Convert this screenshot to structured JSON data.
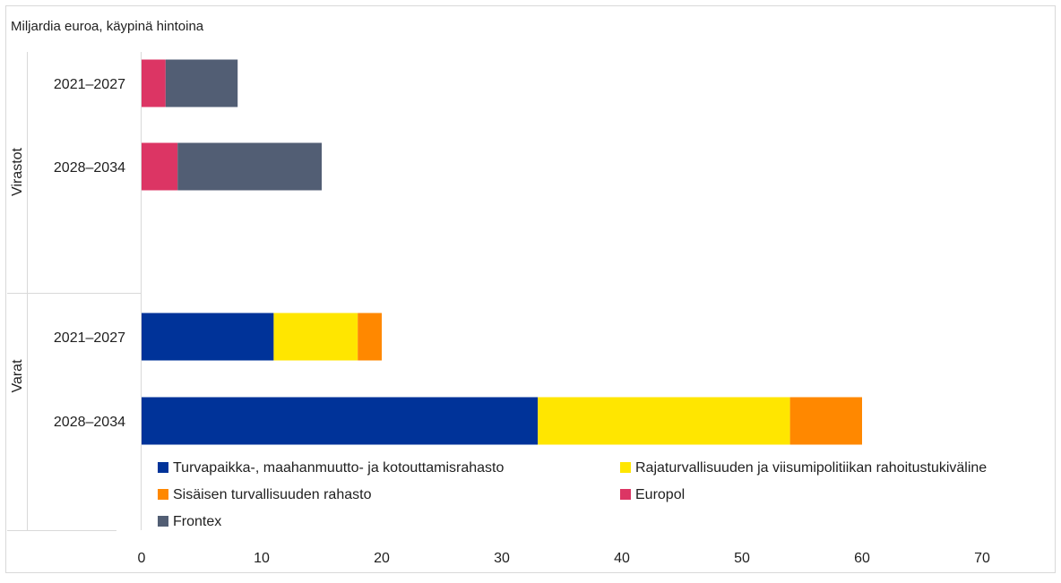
{
  "chart_data": {
    "type": "bar",
    "orientation": "horizontal",
    "stacked": true,
    "title": "Miljardia euroa, käypinä hintoina",
    "groups": [
      {
        "label": "Virastot",
        "categories": [
          "2021–2027",
          "2028–2034"
        ]
      },
      {
        "label": "Varat",
        "categories": [
          "2021–2027",
          "2028–2034"
        ]
      }
    ],
    "series": [
      {
        "name": "Turvapaikka-, maahanmuutto- ja kotouttamisrahasto",
        "color": "#003399",
        "values": [
          0,
          0,
          11,
          33
        ]
      },
      {
        "name": "Rajaturvallisuuden ja viisumipolitiikan rahoitustukiväline",
        "color": "#FFE600",
        "values": [
          0,
          0,
          7,
          21
        ]
      },
      {
        "name": "Sisäisen turvallisuuden rahasto",
        "color": "#FF8800",
        "values": [
          0,
          0,
          2,
          6
        ]
      },
      {
        "name": "Europol",
        "color": "#DC3564",
        "values": [
          2,
          3,
          0,
          0
        ]
      },
      {
        "name": "Frontex",
        "color": "#525E74",
        "values": [
          6,
          12,
          0,
          0
        ]
      }
    ],
    "xlim": [
      0,
      70
    ],
    "xticks": [
      0,
      10,
      20,
      30,
      40,
      50,
      60,
      70
    ],
    "grid": false,
    "legend_position": "bottom"
  }
}
